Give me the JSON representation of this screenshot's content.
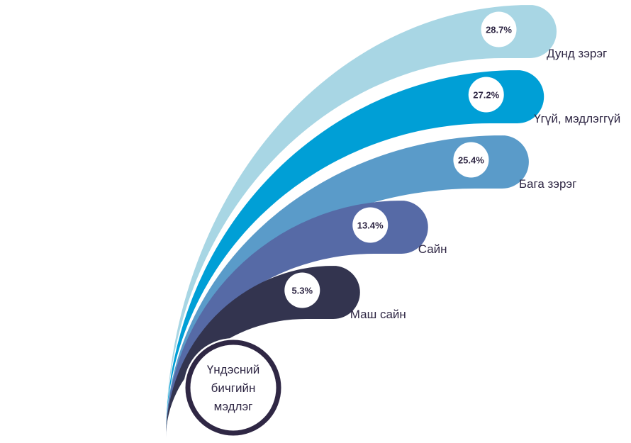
{
  "chart_data": {
    "type": "bar",
    "center_label_lines": [
      "Үндэсний",
      "бичгийн",
      "мэдлэг"
    ],
    "categories": [
      "Дунд зэрэг",
      "Үгүй, мэдлэггүй",
      "Бага зэрэг",
      "Сайн",
      "Маш сайн"
    ],
    "values": [
      28.7,
      27.2,
      25.4,
      13.4,
      5.3
    ],
    "value_labels": [
      "28.7%",
      "27.2%",
      "25.4%",
      "13.4%",
      "5.3%"
    ],
    "unit": "%",
    "colors": [
      "#a8d6e4",
      "#009fd6",
      "#5a9bc9",
      "#566aa6",
      "#33344f"
    ],
    "label_color": "#2f2744",
    "center_ring_color": "#2f2744"
  }
}
